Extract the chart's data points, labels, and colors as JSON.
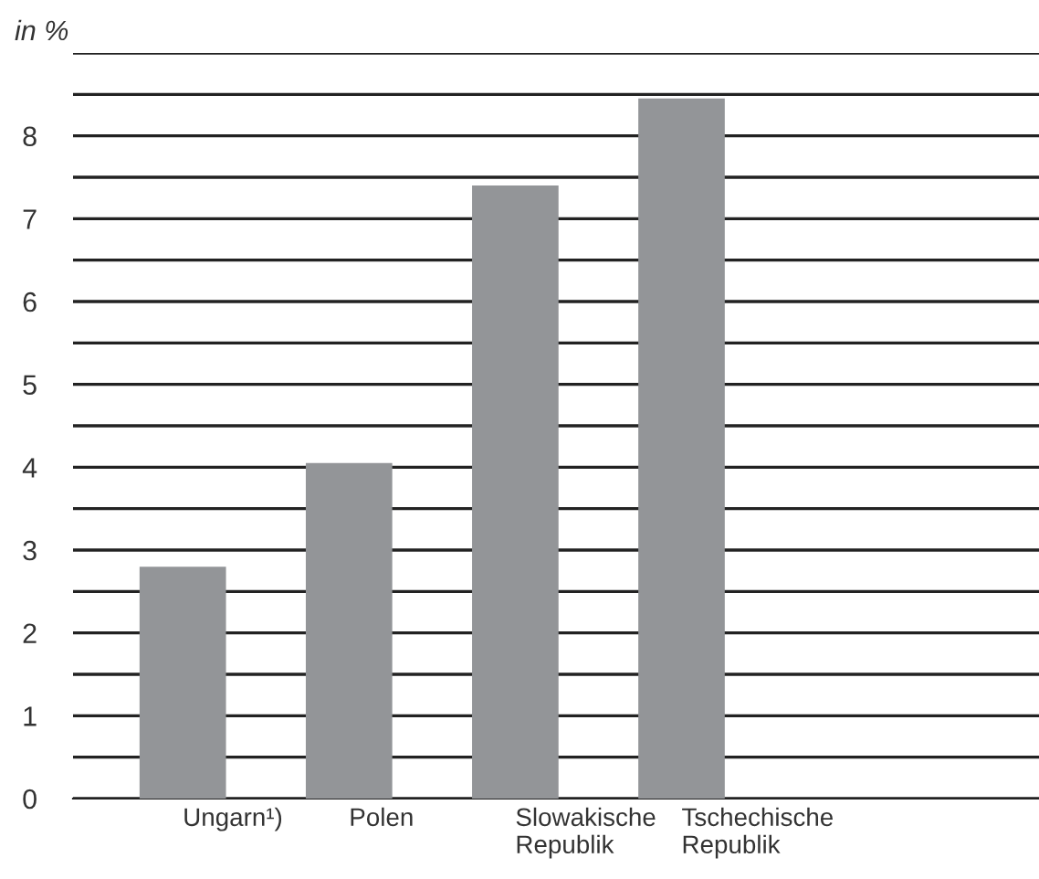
{
  "chart_data": {
    "type": "bar",
    "ylabel": "in %",
    "categories": [
      "Ungarn¹)",
      "Polen",
      "Slowakische\nRepublik",
      "Tschechische\nRepublik"
    ],
    "values": [
      2.8,
      4.05,
      7.4,
      8.45
    ],
    "color": "#939598",
    "ylim": [
      0,
      9
    ],
    "yticks": [
      0,
      {
        "value": 0.5,
        "label": null
      },
      1,
      {
        "value": 1.5,
        "label": null
      },
      2,
      {
        "value": 2.5,
        "label": null
      },
      3,
      {
        "value": 3.5,
        "label": null
      },
      4,
      {
        "value": 4.5,
        "label": null
      },
      5,
      {
        "value": 5.5,
        "label": null
      },
      6,
      {
        "value": 6.5,
        "label": null
      },
      7,
      {
        "value": 7.5,
        "label": null
      },
      8,
      {
        "value": 8.5,
        "label": null
      },
      {
        "value": 9,
        "label": null
      }
    ],
    "grid": "y"
  }
}
